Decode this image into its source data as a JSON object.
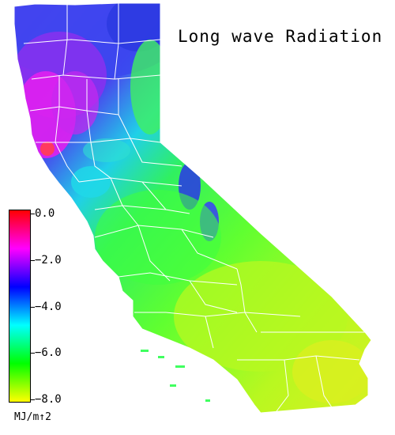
{
  "title": "Long wave Radiation",
  "legend": {
    "units": "MJ/m↑2",
    "ticks": [
      {
        "label": "0.0",
        "value": 0.0
      },
      {
        "label": "−2.0",
        "value": -2.0
      },
      {
        "label": "−4.0",
        "value": -4.0
      },
      {
        "label": "−6.0",
        "value": -6.0
      },
      {
        "label": "−8.0",
        "value": -8.0
      }
    ],
    "range": [
      -8.0,
      0.0
    ],
    "colors": [
      "#ffff00",
      "#00ff00",
      "#00ffff",
      "#0000ff",
      "#ff00ff",
      "#ff0000"
    ]
  },
  "colors": {
    "boundary": "#ffffff",
    "magenta": "#e020f0",
    "violet": "#7a30ee",
    "blue": "#3a48ee",
    "cyan": "#20e0e0",
    "green": "#40ff40",
    "lime": "#b0ff20",
    "yellow": "#d8f020",
    "red": "#ff3a60"
  }
}
